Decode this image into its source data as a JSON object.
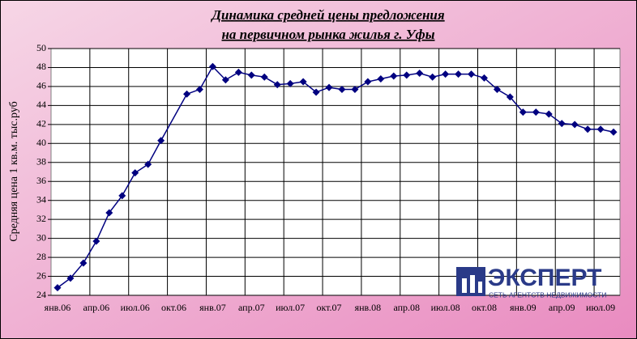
{
  "chart_data": {
    "type": "line",
    "title": [
      "Динамика средней цены предложения",
      "на первичном рынка жилья г. Уфы"
    ],
    "y_label": "Средняя цена 1 кв.м. тыс.руб",
    "categories": [
      "янв.06",
      null,
      null,
      "апр.06",
      null,
      null,
      "июл.06",
      null,
      null,
      "окт.06",
      null,
      null,
      "янв.07",
      null,
      null,
      "апр.07",
      null,
      null,
      "июл.07",
      null,
      null,
      "окт.07",
      null,
      null,
      "янв.08",
      null,
      null,
      "апр.08",
      null,
      null,
      "июл.08",
      null,
      null,
      "окт.08",
      null,
      null,
      "янв.09",
      null,
      null,
      "апр.09",
      null,
      null,
      "июл.09",
      null
    ],
    "series": [
      {
        "color": "#000080",
        "values": [
          24.8,
          25.8,
          27.4,
          29.7,
          32.7,
          34.5,
          36.9,
          37.8,
          40.3,
          null,
          45.2,
          45.7,
          48.1,
          46.7,
          47.5,
          47.2,
          47.0,
          46.2,
          46.3,
          46.5,
          45.4,
          45.9,
          45.7,
          45.7,
          46.5,
          46.8,
          47.1,
          47.2,
          47.4,
          47.0,
          47.3,
          47.3,
          47.3,
          46.9,
          45.7,
          44.9,
          43.3,
          43.3,
          43.1,
          42.1,
          42.0,
          41.5,
          41.5,
          41.2
        ]
      }
    ],
    "span_gaps": true,
    "ylim": [
      24,
      50
    ],
    "yticks": [
      24,
      26,
      28,
      30,
      32,
      34,
      36,
      38,
      40,
      42,
      44,
      46,
      48,
      50
    ],
    "grid": true
  },
  "logo": {
    "name": "ЭКСПЕРТ",
    "tagline": "СЕТЬ АГЕНТСТВ НЕДВИЖИМОСТИ"
  }
}
